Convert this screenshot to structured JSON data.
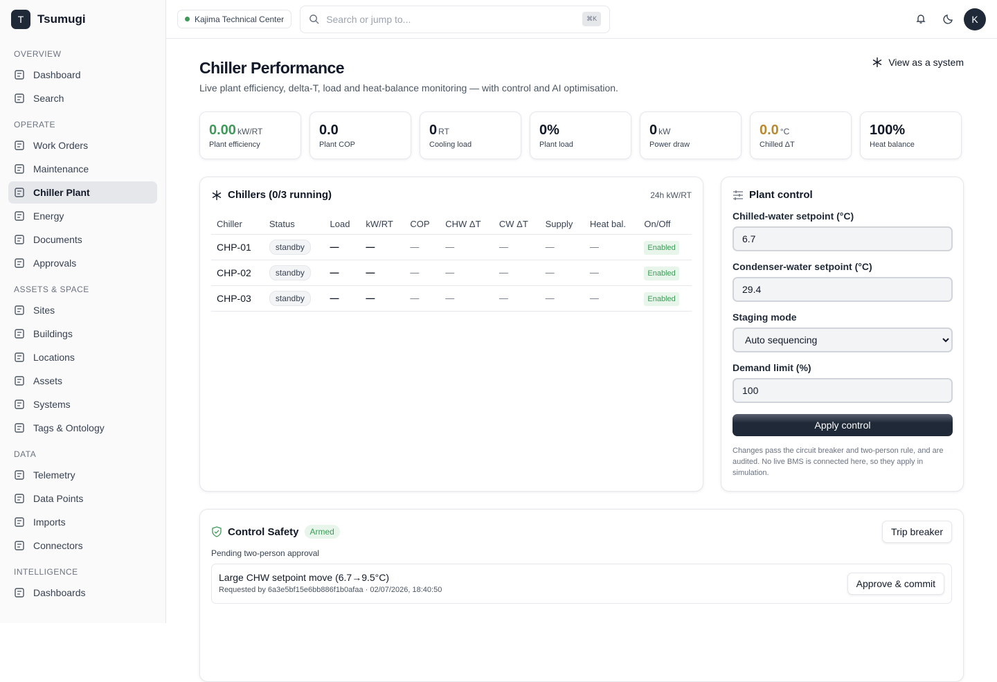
{
  "sidebar": {
    "brand": {
      "initial": "T",
      "name": "Tsumugi"
    },
    "sections": [
      {
        "title": "OVERVIEW",
        "items": [
          {
            "label": "Dashboard"
          },
          {
            "label": "Search"
          }
        ]
      },
      {
        "title": "OPERATE",
        "items": [
          {
            "label": "Work Orders"
          },
          {
            "label": "Maintenance"
          },
          {
            "label": "Chiller Plant",
            "active": true
          },
          {
            "label": "Energy"
          },
          {
            "label": "Documents"
          },
          {
            "label": "Approvals"
          }
        ]
      },
      {
        "title": "ASSETS & SPACE",
        "items": [
          {
            "label": "Sites"
          },
          {
            "label": "Buildings"
          },
          {
            "label": "Locations"
          },
          {
            "label": "Assets"
          },
          {
            "label": "Systems"
          },
          {
            "label": "Tags & Ontology"
          }
        ]
      },
      {
        "title": "DATA",
        "items": [
          {
            "label": "Telemetry"
          },
          {
            "label": "Data Points"
          },
          {
            "label": "Imports"
          },
          {
            "label": "Connectors"
          }
        ]
      },
      {
        "title": "INTELLIGENCE",
        "items": [
          {
            "label": "Dashboards"
          }
        ]
      }
    ]
  },
  "topbar": {
    "site": "Kajima Technical Center",
    "search_placeholder": "Search or jump to...",
    "shortcut": "⌘K",
    "avatar": "K"
  },
  "header": {
    "title": "Chiller Performance",
    "subtitle": "Live plant efficiency, delta-T, load and heat-balance monitoring — with control and AI optimisation.",
    "action": "View as a system"
  },
  "kpis": [
    {
      "value": "0.00",
      "unit": "kW/RT",
      "label": "Plant efficiency",
      "color": "#3f9a5a"
    },
    {
      "value": "0.0",
      "label": "Plant COP"
    },
    {
      "value": "0",
      "unit": "RT",
      "label": "Cooling load"
    },
    {
      "value": "0%",
      "label": "Plant load"
    },
    {
      "value": "0",
      "unit": "kW",
      "label": "Power draw"
    },
    {
      "value": "0.0",
      "unit": "°C",
      "label": "Chilled ΔT",
      "color": "#b8892e"
    },
    {
      "value": "100%",
      "label": "Heat balance"
    }
  ],
  "chillers": {
    "title": "Chillers (0/3 running)",
    "meta": "24h kW/RT",
    "columns": [
      "Chiller",
      "Status",
      "Load",
      "kW/RT",
      "COP",
      "CHW ΔT",
      "CW ΔT",
      "Supply",
      "Heat bal.",
      "On/Off"
    ],
    "rows": [
      [
        "CHP-01",
        "standby",
        "—",
        "—",
        "—",
        "—",
        "—",
        "—",
        "—",
        "Enabled"
      ],
      [
        "CHP-02",
        "standby",
        "—",
        "—",
        "—",
        "—",
        "—",
        "—",
        "—",
        "Enabled"
      ],
      [
        "CHP-03",
        "standby",
        "—",
        "—",
        "—",
        "—",
        "—",
        "—",
        "—",
        "Enabled"
      ]
    ]
  },
  "control": {
    "title": "Plant control",
    "fields": [
      {
        "label": "Chilled-water setpoint (°C)",
        "value": "6.7"
      },
      {
        "label": "Condenser-water setpoint (°C)",
        "value": "29.4"
      },
      {
        "label": "Staging mode",
        "value": "Auto sequencing",
        "select": true
      },
      {
        "label": "Demand limit (%)",
        "value": "100"
      }
    ],
    "button": "Apply control",
    "note": "Changes pass the circuit breaker and two-person rule, and are audited. No live BMS is connected here, so they apply in simulation."
  },
  "safety": {
    "title": "Control Safety",
    "badge": "Armed",
    "button": "Trip breaker",
    "pending_label": "Pending two-person approval",
    "pending": [
      {
        "title": "Large CHW setpoint move (6.7→9.5°C)",
        "meta": "Requested by 6a3e5bf15e6bb886f1b0afaa · 02/07/2026, 18:40:50",
        "button": "Approve & commit"
      }
    ]
  }
}
